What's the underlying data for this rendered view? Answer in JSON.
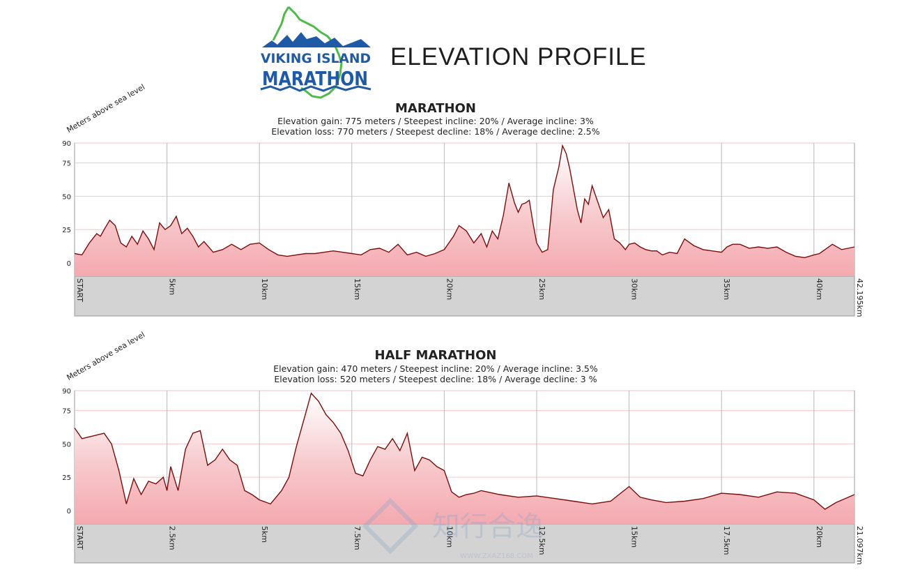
{
  "header": {
    "logo_line1": "VIKING ISLAND",
    "logo_line2": "MARATHON",
    "title": "ELEVATION PROFILE"
  },
  "colors": {
    "line": "#7a0d0d",
    "fill_top": "#f7c9cc",
    "fill_bottom": "#f4a9b0",
    "axis_band": "#d3d3d3",
    "grid": "#b9b9b9",
    "logo_blue": "#1f5aa6",
    "logo_green": "#4dbb4a"
  },
  "watermark": {
    "text": "知行合逸",
    "url": "WWW.ZXAZ168.COM"
  },
  "chart_data": [
    {
      "type": "area",
      "title": "MARATHON",
      "line1": "Elevation gain: 775 meters / Steepest incline: 20% / Average incline: 3%",
      "line2": "Elevation loss: 770 meters / Steepest decline: 18% / Average decline: 2.5%",
      "ylabel": "Meters above sea level",
      "ylim": [
        -10,
        90
      ],
      "yticks": [
        0,
        25,
        50,
        75,
        90
      ],
      "xlim": [
        0,
        42.195
      ],
      "xticks": [
        {
          "x": 0,
          "label": "START"
        },
        {
          "x": 5,
          "label": "5km"
        },
        {
          "x": 10,
          "label": "10km"
        },
        {
          "x": 15,
          "label": "15km"
        },
        {
          "x": 20,
          "label": "20km"
        },
        {
          "x": 25,
          "label": "25km"
        },
        {
          "x": 30,
          "label": "30km"
        },
        {
          "x": 35,
          "label": "35km"
        },
        {
          "x": 40,
          "label": "40km"
        },
        {
          "x": 42.195,
          "label": "42.195km"
        }
      ],
      "x": [
        0,
        0.4,
        0.8,
        1.2,
        1.4,
        1.6,
        1.9,
        2.2,
        2.5,
        2.8,
        3.1,
        3.4,
        3.7,
        4.0,
        4.3,
        4.6,
        4.9,
        5.2,
        5.5,
        5.8,
        6.1,
        6.4,
        6.7,
        7.0,
        7.5,
        8.0,
        8.5,
        9.0,
        9.5,
        10.0,
        10.5,
        11.0,
        11.5,
        12.0,
        12.5,
        13.0,
        13.5,
        14.0,
        14.5,
        15.0,
        15.5,
        16.0,
        16.5,
        17.0,
        17.5,
        18.0,
        18.5,
        19.0,
        19.5,
        20.0,
        20.5,
        20.8,
        21.2,
        21.6,
        22.0,
        22.3,
        22.6,
        22.9,
        23.2,
        23.5,
        23.8,
        24.0,
        24.2,
        24.4,
        24.6,
        24.8,
        25.0,
        25.3,
        25.6,
        25.9,
        26.2,
        26.4,
        26.6,
        26.8,
        27.0,
        27.2,
        27.4,
        27.6,
        27.8,
        28.0,
        28.3,
        28.6,
        28.9,
        29.2,
        29.5,
        29.8,
        30.0,
        30.3,
        30.6,
        30.9,
        31.2,
        31.5,
        31.8,
        32.2,
        32.6,
        33.0,
        33.5,
        34.0,
        34.5,
        35.0,
        35.3,
        35.6,
        36.0,
        36.5,
        37.0,
        37.5,
        38.0,
        38.5,
        39.0,
        39.5,
        40.0,
        40.3,
        40.6,
        41.0,
        41.5,
        42.195
      ],
      "y": [
        7,
        6,
        15,
        22,
        20,
        25,
        32,
        28,
        15,
        12,
        20,
        14,
        24,
        18,
        10,
        30,
        25,
        28,
        35,
        22,
        26,
        20,
        12,
        16,
        8,
        10,
        14,
        10,
        14,
        15,
        10,
        6,
        5,
        6,
        7,
        7,
        8,
        9,
        8,
        7,
        6,
        10,
        11,
        8,
        14,
        6,
        8,
        5,
        7,
        10,
        20,
        28,
        24,
        15,
        22,
        12,
        24,
        18,
        36,
        60,
        45,
        38,
        44,
        45,
        47,
        30,
        15,
        8,
        10,
        55,
        72,
        88,
        82,
        70,
        55,
        40,
        30,
        48,
        44,
        58,
        46,
        34,
        40,
        18,
        15,
        10,
        14,
        15,
        12,
        10,
        9,
        9,
        6,
        8,
        7,
        18,
        13,
        10,
        9,
        8,
        12,
        14,
        14,
        11,
        12,
        11,
        12,
        8,
        5,
        4,
        6,
        7,
        10,
        14,
        10,
        12
      ]
    },
    {
      "type": "area",
      "title": "HALF MARATHON",
      "line1": "Elevation gain: 470 meters / Steepest incline: 20% / Average incline: 3.5%",
      "line2": "Elevation loss: 520 meters / Steepest decline: 18% / Average decline: 3 %",
      "ylabel": "Meters above sea level",
      "ylim": [
        -10,
        90
      ],
      "yticks": [
        0,
        25,
        50,
        75,
        90
      ],
      "xlim": [
        0,
        21.097
      ],
      "xticks": [
        {
          "x": 0,
          "label": "START"
        },
        {
          "x": 2.5,
          "label": "2.5km"
        },
        {
          "x": 5,
          "label": "5km"
        },
        {
          "x": 7.5,
          "label": "7.5km"
        },
        {
          "x": 10,
          "label": "10km"
        },
        {
          "x": 12.5,
          "label": "12.5km"
        },
        {
          "x": 15,
          "label": "15km"
        },
        {
          "x": 17.5,
          "label": "17.5km"
        },
        {
          "x": 20,
          "label": "20km"
        },
        {
          "x": 21.097,
          "label": "21.097km"
        }
      ],
      "x": [
        0,
        0.2,
        0.5,
        0.8,
        1.0,
        1.2,
        1.4,
        1.6,
        1.8,
        2.0,
        2.2,
        2.4,
        2.5,
        2.6,
        2.8,
        3.0,
        3.2,
        3.4,
        3.6,
        3.8,
        4.0,
        4.2,
        4.4,
        4.6,
        4.8,
        5.0,
        5.3,
        5.6,
        5.8,
        6.0,
        6.2,
        6.4,
        6.6,
        6.8,
        7.0,
        7.2,
        7.4,
        7.6,
        7.8,
        8.0,
        8.2,
        8.4,
        8.6,
        8.8,
        9.0,
        9.2,
        9.4,
        9.6,
        9.8,
        10.0,
        10.2,
        10.4,
        10.6,
        10.8,
        11.0,
        11.5,
        12.0,
        12.5,
        13.0,
        13.5,
        14.0,
        14.5,
        15.0,
        15.3,
        15.6,
        16.0,
        16.5,
        17.0,
        17.5,
        18.0,
        18.5,
        19.0,
        19.5,
        20.0,
        20.3,
        20.6,
        21.097
      ],
      "y": [
        62,
        54,
        56,
        58,
        50,
        30,
        5,
        24,
        12,
        22,
        20,
        25,
        15,
        33,
        15,
        46,
        58,
        60,
        34,
        38,
        46,
        38,
        34,
        15,
        12,
        8,
        5,
        15,
        25,
        48,
        68,
        88,
        82,
        72,
        66,
        58,
        45,
        28,
        26,
        38,
        48,
        46,
        54,
        45,
        58,
        30,
        40,
        38,
        33,
        30,
        14,
        10,
        12,
        13,
        15,
        12,
        10,
        11,
        9,
        7,
        5,
        7,
        18,
        10,
        8,
        6,
        7,
        9,
        13,
        12,
        10,
        14,
        13,
        8,
        1,
        6,
        12
      ]
    }
  ]
}
